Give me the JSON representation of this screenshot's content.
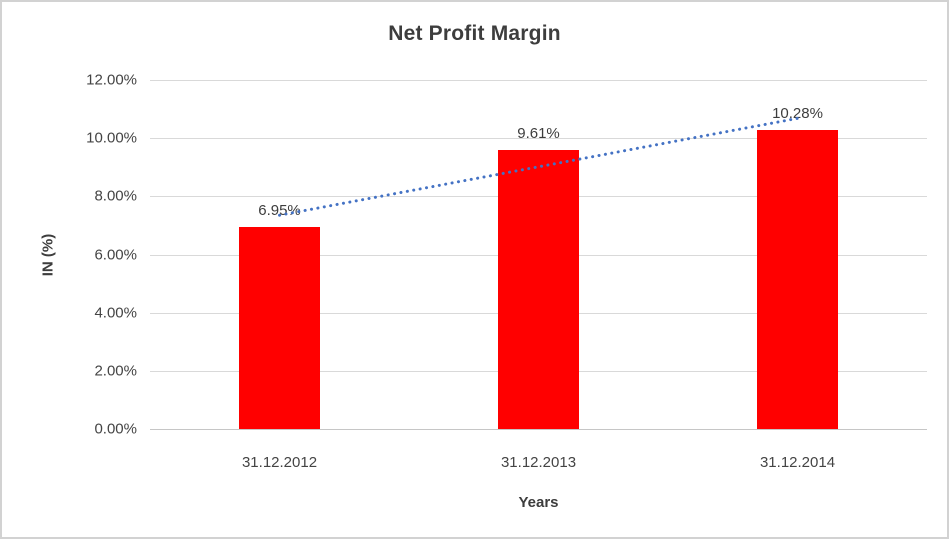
{
  "chart_data": {
    "type": "bar",
    "title": "Net Profit Margin",
    "xlabel": "Years",
    "ylabel": "IN (%)",
    "categories": [
      "31.12.2012",
      "31.12.2013",
      "31.12.2014"
    ],
    "values": [
      6.95,
      9.61,
      10.28
    ],
    "data_labels": [
      "6.95%",
      "9.61%",
      "10.28%"
    ],
    "y_tick_labels": [
      "0.00%",
      "2.00%",
      "4.00%",
      "6.00%",
      "8.00%",
      "10.00%",
      "12.00%"
    ],
    "ylim": [
      0,
      12
    ],
    "grid": true,
    "legend": false,
    "trendline": {
      "style": "dotted",
      "fit": "linear"
    }
  },
  "colors": {
    "bar": "#FF0000",
    "trendline": "#4472C4",
    "gridline": "#D9D9D9",
    "axis_line": "#C6C6C6",
    "text": "#3D3D3D",
    "frame_border": "#D2D2D2",
    "background": "#FFFFFF"
  }
}
